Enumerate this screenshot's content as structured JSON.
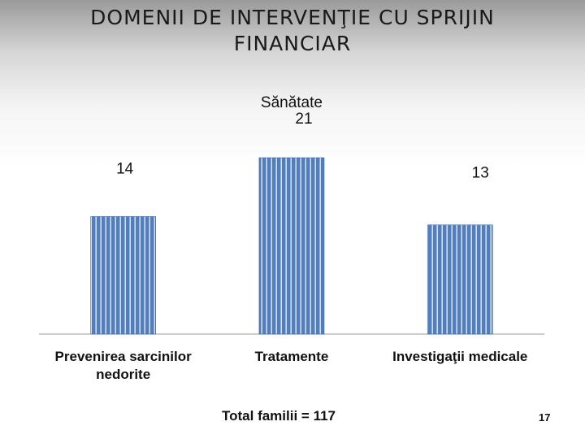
{
  "title": "DOMENII DE INTERVENŢIE CU SPRIJIN FINANCIAR",
  "footer": "Total familii = 117",
  "page_number": "17",
  "colors": {
    "bar": "#4f7fc0",
    "bar_stripe": "#ffffff",
    "axis": "#9a9a9a"
  },
  "chart_data": {
    "type": "bar",
    "categories": [
      "Prevenirea sarcinilor nedorite",
      "Tratamente",
      "Investigaţii medicale"
    ],
    "values": [
      14,
      21,
      13
    ],
    "data_labels": [
      "14",
      "Sănătate\n21",
      "13"
    ],
    "title": "",
    "xlabel": "",
    "ylabel": "",
    "ylim": [
      0,
      21
    ],
    "grid": false,
    "legend": "none"
  }
}
